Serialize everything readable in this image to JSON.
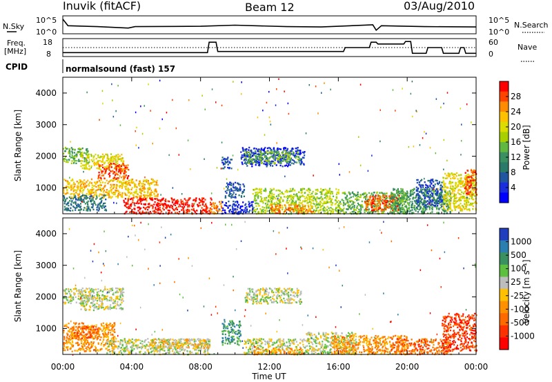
{
  "header": {
    "station": "Inuvik (fitACF)",
    "beam": "Beam 12",
    "date": "03/Aug/2010"
  },
  "top_panels": {
    "nsky_label": "N.Sky",
    "nsearch_label": "N.Search",
    "freq_label_line1": "Freq.",
    "freq_label_line2": "[MHz]",
    "nave_label": "Nave",
    "cpid_label": "CPID",
    "cpid_value": "normalsound (fast) 157",
    "nsky_ticks": [
      "10^5",
      "10^0"
    ],
    "nsearch_ticks": [
      "10^5",
      "10^0"
    ],
    "freq_ticks": [
      "18",
      "8"
    ],
    "nave_ticks": [
      "60",
      "0"
    ]
  },
  "chart_data": [
    {
      "type": "heatmap",
      "panel": "power",
      "ylabel": "Slant Range [km]",
      "xlabel": "",
      "ylim": [
        180,
        4500
      ],
      "xlim": [
        "00:00",
        "24:00"
      ],
      "y_ticks": [
        1000,
        2000,
        3000,
        4000
      ],
      "x_ticks": [
        "00:00",
        "04:00",
        "08:00",
        "12:00",
        "16:00",
        "20:00",
        "00:00"
      ],
      "colorbar": {
        "label": "Power [dB]",
        "ticks": [
          "28",
          "24",
          "20",
          "16",
          "12",
          "8",
          "4"
        ],
        "colors": [
          "#ff0000",
          "#ff4400",
          "#ff8c00",
          "#ffc000",
          "#dcdc00",
          "#a8d000",
          "#60b840",
          "#3a9060",
          "#2a7a6a",
          "#2055a0",
          "#1a2ee0",
          "#0000ff"
        ]
      },
      "regions": [
        {
          "t0": 0.0,
          "t1": 1.5,
          "r0": 1800,
          "r1": 2300,
          "level": 6
        },
        {
          "t0": 1.0,
          "t1": 3.5,
          "r0": 1600,
          "r1": 2100,
          "level": 4
        },
        {
          "t0": 2.0,
          "t1": 3.8,
          "r0": 1300,
          "r1": 1800,
          "level": 1
        },
        {
          "t0": 0.0,
          "t1": 5.5,
          "r0": 700,
          "r1": 1300,
          "level": 3
        },
        {
          "t0": 0.0,
          "t1": 2.5,
          "r0": 300,
          "r1": 800,
          "level": 8
        },
        {
          "t0": 3.5,
          "t1": 8.6,
          "r0": 200,
          "r1": 700,
          "level": 0
        },
        {
          "t0": 8.5,
          "t1": 9.2,
          "r0": 200,
          "r1": 600,
          "level": 2
        },
        {
          "t0": 9.2,
          "t1": 11.0,
          "r0": 200,
          "r1": 600,
          "level": 10
        },
        {
          "t0": 9.2,
          "t1": 9.8,
          "r0": 1600,
          "r1": 2000,
          "level": 9
        },
        {
          "t0": 9.4,
          "t1": 10.5,
          "r0": 700,
          "r1": 1200,
          "level": 9
        },
        {
          "t0": 10.3,
          "t1": 14.0,
          "r0": 1700,
          "r1": 2300,
          "level": 10
        },
        {
          "t0": 10.5,
          "t1": 13.8,
          "r0": 1800,
          "r1": 2200,
          "level": 6
        },
        {
          "t0": 11.0,
          "t1": 16.0,
          "r0": 200,
          "r1": 1000,
          "level": 5
        },
        {
          "t0": 12.0,
          "t1": 14.5,
          "r0": 200,
          "r1": 500,
          "level": 2
        },
        {
          "t0": 16.0,
          "t1": 20.0,
          "r0": 200,
          "r1": 900,
          "level": 6
        },
        {
          "t0": 17.5,
          "t1": 19.5,
          "r0": 300,
          "r1": 800,
          "level": 1
        },
        {
          "t0": 19.0,
          "t1": 22.5,
          "r0": 200,
          "r1": 1000,
          "level": 7
        },
        {
          "t0": 20.5,
          "t1": 22.0,
          "r0": 400,
          "r1": 1300,
          "level": 9
        },
        {
          "t0": 22.0,
          "t1": 24.0,
          "r0": 300,
          "r1": 1500,
          "level": 4
        },
        {
          "t0": 23.3,
          "t1": 24.0,
          "r0": 800,
          "r1": 1600,
          "level": 1
        }
      ]
    },
    {
      "type": "heatmap",
      "panel": "velocity",
      "ylabel": "Slant Range [km]",
      "xlabel": "Time UT",
      "ylim": [
        180,
        4500
      ],
      "xlim": [
        "00:00",
        "24:00"
      ],
      "y_ticks": [
        1000,
        2000,
        3000,
        4000
      ],
      "x_ticks": [
        "00:00",
        "04:00",
        "08:00",
        "12:00",
        "16:00",
        "20:00",
        "00:00"
      ],
      "colorbar": {
        "label": "Velocity [m s^-1]",
        "ticks": [
          "1000",
          "500",
          "100",
          "25",
          "-25",
          "-100",
          "-500",
          "-1000"
        ],
        "colors": [
          "#1f3fbf",
          "#2a7fb0",
          "#3a9060",
          "#5ec040",
          "#bdbdbd",
          "#ffc000",
          "#ff9000",
          "#ff6a00",
          "#ff3000",
          "#ff0000"
        ]
      },
      "regions": [
        {
          "t0": 0.0,
          "t1": 1.5,
          "r0": 1800,
          "r1": 2300,
          "level": 4
        },
        {
          "t0": 1.0,
          "t1": 3.5,
          "r0": 1600,
          "r1": 2300,
          "level": 4
        },
        {
          "t0": 0.0,
          "t1": 3.0,
          "r0": 300,
          "r1": 1200,
          "level": 6
        },
        {
          "t0": 0.5,
          "t1": 2.0,
          "r0": 700,
          "r1": 1100,
          "level": 7
        },
        {
          "t0": 2.5,
          "t1": 8.5,
          "r0": 200,
          "r1": 700,
          "level": 4
        },
        {
          "t0": 5.0,
          "t1": 8.5,
          "r0": 400,
          "r1": 700,
          "level": 5
        },
        {
          "t0": 9.2,
          "t1": 10.3,
          "r0": 500,
          "r1": 1300,
          "level": 2
        },
        {
          "t0": 10.5,
          "t1": 13.8,
          "r0": 1800,
          "r1": 2300,
          "level": 4
        },
        {
          "t0": 10.5,
          "t1": 14.0,
          "r0": 200,
          "r1": 700,
          "level": 4
        },
        {
          "t0": 11.0,
          "t1": 14.0,
          "r0": 200,
          "r1": 400,
          "level": 6
        },
        {
          "t0": 14.0,
          "t1": 17.0,
          "r0": 200,
          "r1": 900,
          "level": 4
        },
        {
          "t0": 15.5,
          "t1": 20.0,
          "r0": 200,
          "r1": 800,
          "level": 6
        },
        {
          "t0": 19.0,
          "t1": 22.5,
          "r0": 200,
          "r1": 700,
          "level": 7
        },
        {
          "t0": 22.0,
          "t1": 24.0,
          "r0": 300,
          "r1": 1500,
          "level": 8
        }
      ]
    }
  ],
  "line_data": {
    "nsky": [
      [
        0,
        0.18
      ],
      [
        0.3,
        0.55
      ],
      [
        2,
        0.6
      ],
      [
        3.8,
        0.68
      ],
      [
        4.2,
        0.6
      ],
      [
        8,
        0.58
      ],
      [
        10,
        0.52
      ],
      [
        13,
        0.6
      ],
      [
        15,
        0.62
      ],
      [
        18,
        0.5
      ],
      [
        18.2,
        0.8
      ],
      [
        18.5,
        0.55
      ],
      [
        21,
        0.6
      ],
      [
        24,
        0.62
      ]
    ],
    "freq": [
      [
        0,
        0.78
      ],
      [
        8.4,
        0.78
      ],
      [
        8.5,
        0.2
      ],
      [
        8.9,
        0.2
      ],
      [
        9.0,
        0.72
      ],
      [
        16.3,
        0.72
      ],
      [
        16.4,
        0.5
      ],
      [
        17.8,
        0.5
      ],
      [
        17.9,
        0.2
      ],
      [
        18.2,
        0.2
      ],
      [
        18.3,
        0.3
      ],
      [
        19.8,
        0.3
      ],
      [
        19.9,
        0.16
      ],
      [
        20.2,
        0.16
      ],
      [
        20.3,
        0.82
      ],
      [
        21.1,
        0.82
      ],
      [
        21.2,
        0.5
      ],
      [
        22.0,
        0.5
      ],
      [
        22.1,
        0.82
      ],
      [
        23.0,
        0.82
      ],
      [
        23.1,
        0.5
      ],
      [
        23.3,
        0.5
      ],
      [
        23.4,
        0.82
      ],
      [
        24,
        0.82
      ]
    ]
  },
  "colors": {
    "axis": "#000000",
    "text": "#000000"
  }
}
